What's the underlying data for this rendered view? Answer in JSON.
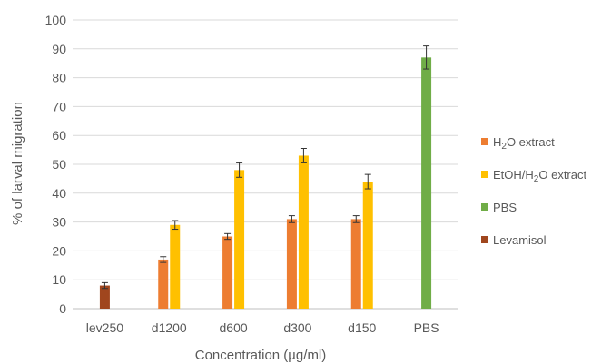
{
  "chart_data": {
    "type": "bar",
    "categories": [
      "lev250",
      "d1200",
      "d600",
      "d300",
      "d150",
      "PBS"
    ],
    "xlabel": "Concentration (µg/ml)",
    "ylabel": "% of larval migration",
    "ylim": [
      0,
      100
    ],
    "yticks": [
      0,
      10,
      20,
      30,
      40,
      50,
      60,
      70,
      80,
      90,
      100
    ],
    "grid": true,
    "legend_position": "right",
    "series": [
      {
        "name": "H2O extract",
        "color": "#ED7D31",
        "values": [
          null,
          17,
          25,
          31,
          31,
          null
        ],
        "errors": [
          null,
          1,
          1,
          1.2,
          1.2,
          null
        ]
      },
      {
        "name": "EtOH/H2O extract",
        "color": "#FFC000",
        "values": [
          null,
          29,
          48,
          53,
          44,
          null
        ],
        "errors": [
          null,
          1.5,
          2.5,
          2.5,
          2.5,
          null
        ]
      },
      {
        "name": "PBS",
        "color": "#70AD47",
        "values": [
          null,
          null,
          null,
          null,
          null,
          87
        ],
        "errors": [
          null,
          null,
          null,
          null,
          null,
          4
        ]
      },
      {
        "name": "Levamisol",
        "color": "#A0461E",
        "values": [
          8,
          null,
          null,
          null,
          null,
          null
        ],
        "errors": [
          1,
          null,
          null,
          null,
          null,
          null
        ]
      }
    ]
  },
  "legend_items": [
    {
      "pre": "H",
      "sub": "2",
      "post": "O extract",
      "color": "#ED7D31"
    },
    {
      "pre": "EtOH/H",
      "sub": "2",
      "post": "O extract",
      "color": "#FFC000"
    },
    {
      "pre": "PBS",
      "sub": "",
      "post": "",
      "color": "#70AD47"
    },
    {
      "pre": "Levamisol",
      "sub": "",
      "post": "",
      "color": "#A0461E"
    }
  ]
}
